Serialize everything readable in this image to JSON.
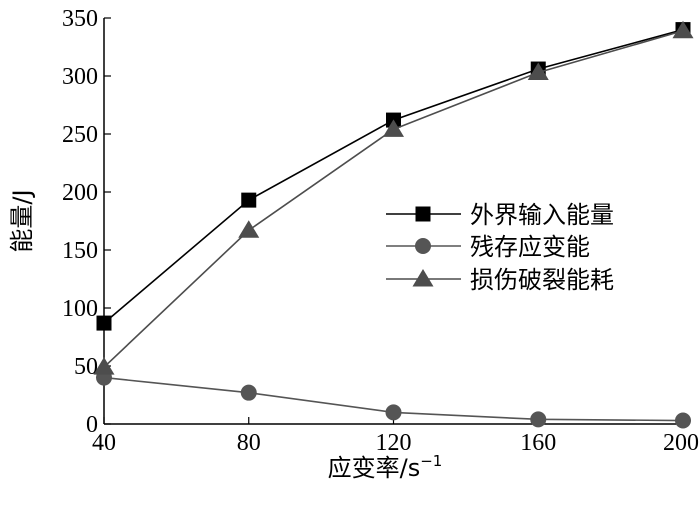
{
  "chart_data": {
    "type": "line",
    "x": [
      40,
      80,
      120,
      160,
      200
    ],
    "xlim": [
      40,
      200
    ],
    "ylim": [
      0,
      350
    ],
    "xticks": [
      "40",
      "80",
      "120",
      "160",
      "200"
    ],
    "yticks": [
      "0",
      "50",
      "100",
      "150",
      "200",
      "250",
      "300",
      "350"
    ],
    "xlabel_main": "应变率/s",
    "xlabel_sup": "−1",
    "ylabel": "能量/J",
    "grid": false,
    "legend_position": "right-middle",
    "series": [
      {
        "name": "外界输入能量",
        "marker": "square",
        "color": "#000000",
        "values": [
          87,
          193,
          262,
          306,
          340
        ]
      },
      {
        "name": "残存应变能",
        "marker": "circle",
        "color": "#555555",
        "values": [
          40,
          27,
          10,
          4,
          3
        ]
      },
      {
        "name": "损伤破裂能耗",
        "marker": "triangle",
        "color": "#4d4d4d",
        "values": [
          49,
          167,
          254,
          303,
          339
        ]
      }
    ]
  }
}
